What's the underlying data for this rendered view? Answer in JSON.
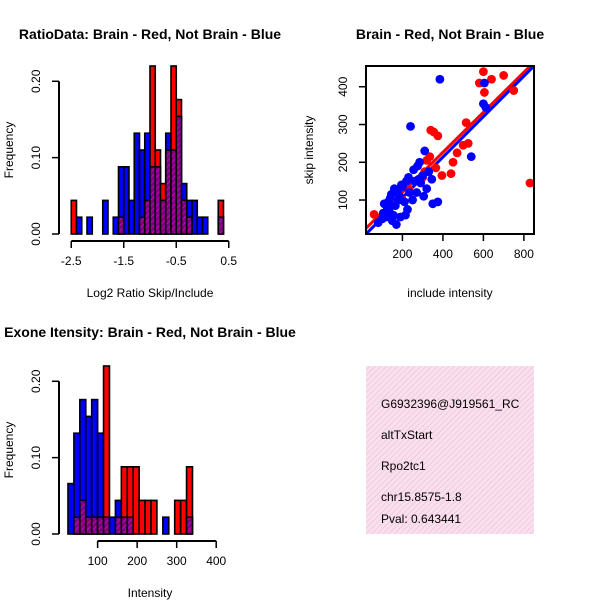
{
  "chart_data": [
    {
      "id": "ratio-hist",
      "type": "histogram",
      "title": "RatioData: Brain - Red, Not Brain - Blue",
      "xlabel": "Log2 Ratio Skip/Include",
      "ylabel": "Frequency",
      "xlim": [
        -2.6,
        0.6
      ],
      "ylim": [
        0,
        0.22
      ],
      "xticks": [
        "-2.5",
        "-1.5",
        "-0.5",
        "0.5"
      ],
      "xtick_values": [
        -2.5,
        -1.5,
        -0.5,
        0.5
      ],
      "yticks": [
        "0.00",
        "0.10",
        "0.20"
      ],
      "ytick_values": [
        0,
        0.1,
        0.2
      ],
      "bin_start": -2.5,
      "bin_width": 0.1,
      "series": [
        {
          "name": "Brain",
          "color": "#ff0000",
          "values": [
            0.044,
            0,
            0,
            0,
            0,
            0,
            0,
            0,
            0,
            0.022,
            0,
            0,
            0,
            0.022,
            0.044,
            0.22,
            0.11,
            0.066,
            0.11,
            0.22,
            0.176,
            0.044,
            0.022,
            0,
            0,
            0,
            0,
            0,
            0.044
          ]
        },
        {
          "name": "Not Brain",
          "color": "#0000ff",
          "values": [
            0,
            0.022,
            0,
            0.022,
            0,
            0,
            0.044,
            0,
            0.022,
            0.088,
            0.088,
            0.044,
            0.132,
            0.11,
            0.132,
            0.088,
            0.088,
            0.044,
            0.132,
            0.11,
            0.154,
            0.066,
            0.044,
            0.044,
            0.022,
            0.022,
            0,
            0,
            0.022
          ]
        }
      ]
    },
    {
      "id": "scatter",
      "type": "scatter",
      "title": "Brain - Red, Not Brain - Blue",
      "xlabel": "include intensity",
      "ylabel": "skip intensity",
      "xlim": [
        20,
        850
      ],
      "ylim": [
        10,
        455
      ],
      "xticks": [
        "200",
        "400",
        "600",
        "800"
      ],
      "xtick_values": [
        200,
        400,
        600,
        800
      ],
      "yticks": [
        "100",
        "200",
        "300",
        "400"
      ],
      "ytick_values": [
        100,
        200,
        300,
        400
      ],
      "series": [
        {
          "name": "Brain",
          "color": "#ff0000",
          "points": [
            [
              60,
              62
            ],
            [
              150,
              90
            ],
            [
              200,
              100
            ],
            [
              230,
              130
            ],
            [
              280,
              150
            ],
            [
              300,
              160
            ],
            [
              310,
              175
            ],
            [
              320,
              205
            ],
            [
              335,
              215
            ],
            [
              340,
              285
            ],
            [
              355,
              280
            ],
            [
              375,
              270
            ],
            [
              365,
              185
            ],
            [
              395,
              165
            ],
            [
              440,
              170
            ],
            [
              450,
              200
            ],
            [
              470,
              225
            ],
            [
              500,
              245
            ],
            [
              515,
              305
            ],
            [
              525,
              250
            ],
            [
              580,
              410
            ],
            [
              600,
              440
            ],
            [
              605,
              385
            ],
            [
              640,
              420
            ],
            [
              700,
              430
            ],
            [
              750,
              390
            ],
            [
              830,
              145
            ]
          ],
          "fit": [
            [
              20,
              25
            ],
            [
              850,
              465
            ]
          ]
        },
        {
          "name": "Not Brain",
          "color": "#0000ff",
          "points": [
            [
              80,
              40
            ],
            [
              100,
              50
            ],
            [
              105,
              65
            ],
            [
              110,
              90
            ],
            [
              120,
              55
            ],
            [
              125,
              80
            ],
            [
              130,
              95
            ],
            [
              135,
              70
            ],
            [
              140,
              105
            ],
            [
              145,
              115
            ],
            [
              150,
              45
            ],
            [
              155,
              60
            ],
            [
              160,
              130
            ],
            [
              165,
              85
            ],
            [
              170,
              35
            ],
            [
              175,
              120
            ],
            [
              180,
              100
            ],
            [
              185,
              110
            ],
            [
              190,
              55
            ],
            [
              195,
              140
            ],
            [
              200,
              135
            ],
            [
              210,
              95
            ],
            [
              215,
              60
            ],
            [
              220,
              150
            ],
            [
              225,
              75
            ],
            [
              230,
              160
            ],
            [
              235,
              120
            ],
            [
              240,
              295
            ],
            [
              250,
              100
            ],
            [
              255,
              180
            ],
            [
              260,
              150
            ],
            [
              270,
              120
            ],
            [
              275,
              190
            ],
            [
              280,
              155
            ],
            [
              285,
              200
            ],
            [
              290,
              145
            ],
            [
              300,
              165
            ],
            [
              305,
              110
            ],
            [
              310,
              230
            ],
            [
              320,
              130
            ],
            [
              330,
              175
            ],
            [
              345,
              155
            ],
            [
              350,
              90
            ],
            [
              375,
              95
            ],
            [
              385,
              420
            ],
            [
              540,
              215
            ],
            [
              600,
              355
            ],
            [
              605,
              410
            ],
            [
              612,
              345
            ]
          ],
          "fit": [
            [
              20,
              10
            ],
            [
              850,
              455
            ]
          ]
        }
      ]
    },
    {
      "id": "intensity-hist",
      "type": "histogram",
      "title": "Exone Itensity: Brain - Red, Not Brain - Blue",
      "xlabel": "Intensity",
      "ylabel": "Frequency",
      "xlim": [
        20,
        445
      ],
      "ylim": [
        0,
        0.22
      ],
      "xticks": [
        "100",
        "200",
        "300",
        "400"
      ],
      "xtick_values": [
        100,
        200,
        300,
        400
      ],
      "yticks": [
        "0.00",
        "0.10",
        "0.20"
      ],
      "ytick_values": [
        0,
        0.1,
        0.2
      ],
      "bin_start": 25,
      "bin_width": 15,
      "series": [
        {
          "name": "Brain",
          "color": "#ff0000",
          "values": [
            0,
            0.022,
            0.044,
            0.022,
            0.022,
            0.022,
            0.22,
            0,
            0.022,
            0.088,
            0.088,
            0.088,
            0.044,
            0.044,
            0.044,
            0,
            0,
            0,
            0.044,
            0.044,
            0.088
          ]
        },
        {
          "name": "Not Brain",
          "color": "#0000ff",
          "values": [
            0.066,
            0.132,
            0.176,
            0.154,
            0.176,
            0.132,
            0.022,
            0.022,
            0.044,
            0.022,
            0.022,
            0,
            0,
            0,
            0,
            0,
            0.022,
            0,
            0,
            0,
            0.022
          ]
        }
      ]
    }
  ],
  "info_panel": {
    "lines": [
      "G6932396@J919561_RC",
      "altTxStart",
      "Rpo2tc1",
      "chr15.8575-1.8"
    ],
    "pval": "Pval: 0.643441",
    "bg_color": "#f8e0ee",
    "hatch_color": "#f2bcd8",
    "pval_color": "#990000"
  }
}
